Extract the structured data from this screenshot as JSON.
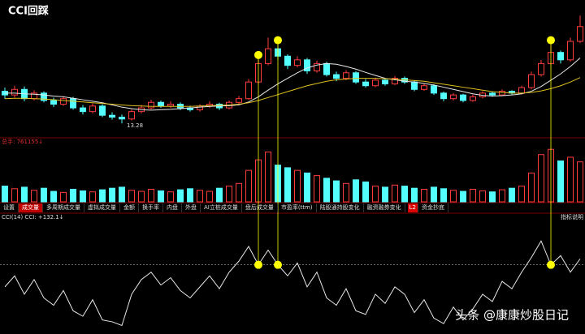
{
  "header": {
    "title": "CCI回踩"
  },
  "chart_data": {
    "type": "candlestick",
    "ylim": [
      13.0,
      16.4
    ],
    "up_color": "#ff3c3c",
    "down_color": "#54ffff",
    "open": [
      14.15,
      14.05,
      14.2,
      13.95,
      14.1,
      13.9,
      13.8,
      13.95,
      13.7,
      13.6,
      13.75,
      13.5,
      13.45,
      13.4,
      13.6,
      13.7,
      13.85,
      13.75,
      13.8,
      13.7,
      13.65,
      13.75,
      13.8,
      13.7,
      13.85,
      13.95,
      14.4,
      14.9,
      15.3,
      15.1,
      14.85,
      15.0,
      14.7,
      14.9,
      14.6,
      14.5,
      14.65,
      14.4,
      14.3,
      14.45,
      14.35,
      14.5,
      14.4,
      14.2,
      14.3,
      14.1,
      13.95,
      14.05,
      13.9,
      14.0,
      14.1,
      14.05,
      14.15,
      14.1,
      14.25,
      14.6,
      14.9,
      15.2,
      15.0,
      15.5
    ],
    "high": [
      14.25,
      14.3,
      14.28,
      14.18,
      14.15,
      13.98,
      14.02,
      14.0,
      13.78,
      13.82,
      13.8,
      13.58,
      13.52,
      13.66,
      13.78,
      13.92,
      13.9,
      13.88,
      13.85,
      13.76,
      13.8,
      13.88,
      13.84,
      13.9,
      14.02,
      14.48,
      15.0,
      15.6,
      15.4,
      15.15,
      15.1,
      15.05,
      14.98,
      14.95,
      14.68,
      14.72,
      14.7,
      14.48,
      14.52,
      14.5,
      14.56,
      14.55,
      14.44,
      14.36,
      14.34,
      14.14,
      14.1,
      14.08,
      14.06,
      14.15,
      14.14,
      14.2,
      14.18,
      14.3,
      14.68,
      15.0,
      15.4,
      15.25,
      15.6,
      16.2
    ],
    "low": [
      13.95,
      13.98,
      13.88,
      13.9,
      13.85,
      13.72,
      13.75,
      13.65,
      13.52,
      13.55,
      13.45,
      13.38,
      13.28,
      13.36,
      13.55,
      13.66,
      13.7,
      13.7,
      13.64,
      13.6,
      13.6,
      13.7,
      13.64,
      13.66,
      13.8,
      13.92,
      14.35,
      14.85,
      15.0,
      14.75,
      14.8,
      14.62,
      14.65,
      14.55,
      14.42,
      14.45,
      14.35,
      14.25,
      14.26,
      14.3,
      14.32,
      14.35,
      14.15,
      14.16,
      14.05,
      13.88,
      13.9,
      13.85,
      13.86,
      13.96,
      14.0,
      14.02,
      14.05,
      14.06,
      14.2,
      14.55,
      14.85,
      14.9,
      14.95,
      15.45
    ],
    "close": [
      14.05,
      14.2,
      13.95,
      14.1,
      13.9,
      13.8,
      13.95,
      13.7,
      13.6,
      13.75,
      13.5,
      13.45,
      13.4,
      13.6,
      13.7,
      13.85,
      13.75,
      13.8,
      13.7,
      13.65,
      13.75,
      13.8,
      13.7,
      13.85,
      13.95,
      14.4,
      14.9,
      15.3,
      15.1,
      14.85,
      15.0,
      14.7,
      14.9,
      14.6,
      14.5,
      14.65,
      14.4,
      14.3,
      14.45,
      14.35,
      14.5,
      14.4,
      14.2,
      14.3,
      14.1,
      13.95,
      14.05,
      13.9,
      14.0,
      14.1,
      14.05,
      14.15,
      14.1,
      14.25,
      14.6,
      14.9,
      15.2,
      15.0,
      15.5,
      15.9
    ],
    "ma": [
      {
        "color": "#e8e8e8",
        "values": [
          14.1,
          14.1,
          14.08,
          14.07,
          14.05,
          14.02,
          14.0,
          13.96,
          13.92,
          13.88,
          13.84,
          13.78,
          13.72,
          13.68,
          13.65,
          13.64,
          13.65,
          13.66,
          13.68,
          13.7,
          13.72,
          13.74,
          13.75,
          13.76,
          13.78,
          13.86,
          14.0,
          14.18,
          14.35,
          14.5,
          14.65,
          14.78,
          14.86,
          14.9,
          14.88,
          14.82,
          14.75,
          14.66,
          14.58,
          14.5,
          14.46,
          14.42,
          14.4,
          14.36,
          14.32,
          14.26,
          14.2,
          14.14,
          14.08,
          14.04,
          14.02,
          14.03,
          14.05,
          14.08,
          14.15,
          14.28,
          14.45,
          14.62,
          14.82,
          15.05
        ]
      },
      {
        "color": "#e0c020",
        "values": [
          13.95,
          13.96,
          13.96,
          13.95,
          13.94,
          13.92,
          13.9,
          13.88,
          13.86,
          13.84,
          13.82,
          13.8,
          13.78,
          13.76,
          13.75,
          13.74,
          13.74,
          13.74,
          13.74,
          13.74,
          13.75,
          13.76,
          13.77,
          13.78,
          13.8,
          13.84,
          13.9,
          13.98,
          14.06,
          14.14,
          14.22,
          14.3,
          14.36,
          14.42,
          14.46,
          14.48,
          14.5,
          14.5,
          14.5,
          14.49,
          14.48,
          14.46,
          14.44,
          14.42,
          14.38,
          14.34,
          14.3,
          14.26,
          14.22,
          14.18,
          14.14,
          14.12,
          14.1,
          14.1,
          14.12,
          14.16,
          14.22,
          14.3,
          14.4,
          14.52
        ]
      }
    ],
    "volume": {
      "label": "总手: 761155↓",
      "ylim": [
        0,
        1050000
      ],
      "values": [
        300000,
        250000,
        280000,
        220000,
        260000,
        200000,
        180000,
        240000,
        210000,
        190000,
        230000,
        260000,
        280000,
        220000,
        200000,
        240000,
        210000,
        190000,
        230000,
        250000,
        220000,
        200000,
        260000,
        300000,
        350000,
        600000,
        800000,
        950000,
        700000,
        650000,
        600000,
        550000,
        500000,
        450000,
        400000,
        350000,
        420000,
        380000,
        300000,
        280000,
        320000,
        300000,
        260000,
        240000,
        280000,
        250000,
        220000,
        200000,
        240000,
        210000,
        190000,
        230000,
        260000,
        300000,
        550000,
        900000,
        1000000,
        780000,
        850000,
        761155
      ]
    },
    "tabs": [
      "设置",
      "成交量",
      "多周期成交量",
      "虚拟成交量",
      "金额",
      "换手率",
      "内盘",
      "外盘",
      "AI立桩成交量",
      "盘后成交量",
      "市盈率(ttm)",
      "陆股通持股变化",
      "融资融券变化",
      "L2",
      "资金抄底"
    ],
    "cci": {
      "label": "CCI(14) CCI: +132.1↓",
      "help": "指标说明",
      "ylim": [
        -250,
        350
      ],
      "level": 100,
      "color": "#e8e8e8",
      "values": [
        -20,
        40,
        -60,
        20,
        -80,
        -120,
        -40,
        -150,
        -180,
        -90,
        -200,
        -210,
        -230,
        -60,
        20,
        60,
        -10,
        30,
        -40,
        -80,
        -20,
        40,
        -30,
        60,
        120,
        200,
        100,
        180,
        100,
        40,
        110,
        -20,
        60,
        -80,
        -120,
        -30,
        -150,
        -170,
        -60,
        -110,
        -20,
        -60,
        -160,
        -90,
        -190,
        -220,
        -130,
        -200,
        -140,
        -60,
        -100,
        10,
        -30,
        60,
        140,
        230,
        100,
        150,
        60,
        132.1
      ]
    },
    "signals": [
      26,
      28,
      56
    ],
    "signal_color": "#ffff00"
  },
  "watermark": "头条 @康康炒股日记"
}
